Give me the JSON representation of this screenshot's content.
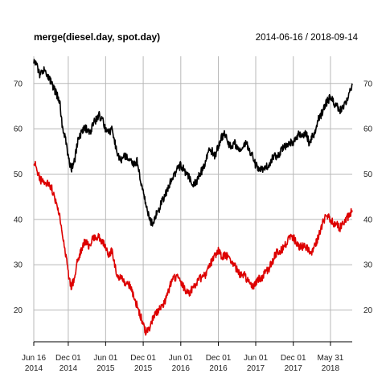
{
  "chart_data": {
    "type": "line",
    "title": "merge(diesel.day, spot.day)",
    "date_range": "2014-06-16 / 2018-09-14",
    "ylim": [
      13,
      76
    ],
    "y_ticks": [
      20,
      30,
      40,
      50,
      60,
      70
    ],
    "x_ticks": [
      {
        "date": "2014-06-16",
        "line1": "Jun 16",
        "line2": "2014"
      },
      {
        "date": "2014-12-01",
        "line1": "Dec 01",
        "line2": "2014"
      },
      {
        "date": "2015-06-01",
        "line1": "Jun 01",
        "line2": "2015"
      },
      {
        "date": "2015-12-01",
        "line1": "Dec 01",
        "line2": "2015"
      },
      {
        "date": "2016-06-01",
        "line1": "Jun 01",
        "line2": "2016"
      },
      {
        "date": "2016-12-01",
        "line1": "Dec 01",
        "line2": "2016"
      },
      {
        "date": "2017-06-01",
        "line1": "Jun 01",
        "line2": "2017"
      },
      {
        "date": "2017-12-01",
        "line1": "Dec 01",
        "line2": "2017"
      },
      {
        "date": "2018-05-31",
        "line1": "May 31",
        "line2": "2018"
      }
    ],
    "grid": true,
    "series": [
      {
        "color": "#000000",
        "x": [
          "2014-06-16",
          "2014-07-01",
          "2014-07-15",
          "2014-08-01",
          "2014-08-20",
          "2014-09-10",
          "2014-10-01",
          "2014-10-20",
          "2014-11-01",
          "2014-11-20",
          "2014-12-01",
          "2014-12-15",
          "2015-01-01",
          "2015-01-15",
          "2015-02-01",
          "2015-02-15",
          "2015-03-01",
          "2015-03-15",
          "2015-04-01",
          "2015-04-15",
          "2015-05-01",
          "2015-05-15",
          "2015-06-01",
          "2015-06-15",
          "2015-07-01",
          "2015-07-15",
          "2015-08-01",
          "2015-08-15",
          "2015-09-01",
          "2015-09-15",
          "2015-10-01",
          "2015-10-15",
          "2015-11-01",
          "2015-11-15",
          "2015-12-01",
          "2015-12-15",
          "2016-01-01",
          "2016-01-15",
          "2016-02-01",
          "2016-02-15",
          "2016-03-01",
          "2016-03-15",
          "2016-04-01",
          "2016-04-15",
          "2016-05-01",
          "2016-05-15",
          "2016-06-01",
          "2016-06-15",
          "2016-07-01",
          "2016-07-15",
          "2016-08-01",
          "2016-08-15",
          "2016-09-01",
          "2016-09-15",
          "2016-10-01",
          "2016-10-15",
          "2016-11-01",
          "2016-11-15",
          "2016-12-01",
          "2016-12-15",
          "2017-01-01",
          "2017-01-15",
          "2017-02-01",
          "2017-02-15",
          "2017-03-01",
          "2017-03-15",
          "2017-04-01",
          "2017-04-15",
          "2017-05-01",
          "2017-05-15",
          "2017-06-01",
          "2017-06-15",
          "2017-07-01",
          "2017-07-15",
          "2017-08-01",
          "2017-08-15",
          "2017-09-01",
          "2017-09-15",
          "2017-10-01",
          "2017-10-15",
          "2017-11-01",
          "2017-11-15",
          "2017-12-01",
          "2017-12-15",
          "2018-01-01",
          "2018-01-15",
          "2018-02-01",
          "2018-02-15",
          "2018-03-01",
          "2018-03-15",
          "2018-04-01",
          "2018-04-15",
          "2018-05-01",
          "2018-05-15",
          "2018-06-01",
          "2018-06-15",
          "2018-07-01",
          "2018-07-15",
          "2018-08-01",
          "2018-08-15",
          "2018-09-01",
          "2018-09-14"
        ],
        "values": [
          75,
          74,
          72,
          73,
          72,
          70,
          68,
          66,
          61,
          57,
          54,
          51,
          53,
          57,
          59,
          60,
          60,
          59,
          61,
          62,
          63,
          62,
          60,
          59,
          60,
          57,
          54,
          53,
          54,
          54,
          53,
          52,
          53,
          49,
          46,
          43,
          40,
          39,
          41,
          42,
          44,
          45,
          47,
          49,
          50,
          51,
          52,
          51,
          50,
          49,
          48,
          48,
          50,
          51,
          53,
          55,
          55,
          54,
          56,
          58,
          59,
          57,
          56,
          57,
          56,
          55,
          56,
          57,
          55,
          54,
          52,
          51,
          51,
          51,
          52,
          53,
          54,
          54,
          55,
          56,
          56,
          57,
          57,
          58,
          59,
          58,
          59,
          57,
          58,
          59,
          62,
          63,
          65,
          66,
          67,
          66,
          65,
          64,
          65,
          66,
          68,
          70
        ]
      },
      {
        "color": "#dd0000",
        "x": [
          "2014-06-16",
          "2014-07-01",
          "2014-07-15",
          "2014-08-01",
          "2014-08-20",
          "2014-09-10",
          "2014-10-01",
          "2014-10-20",
          "2014-11-01",
          "2014-11-20",
          "2014-12-01",
          "2014-12-15",
          "2015-01-01",
          "2015-01-15",
          "2015-02-01",
          "2015-02-15",
          "2015-03-01",
          "2015-03-15",
          "2015-04-01",
          "2015-04-15",
          "2015-05-01",
          "2015-05-15",
          "2015-06-01",
          "2015-06-15",
          "2015-07-01",
          "2015-07-15",
          "2015-08-01",
          "2015-08-15",
          "2015-09-01",
          "2015-09-15",
          "2015-10-01",
          "2015-10-15",
          "2015-11-01",
          "2015-11-15",
          "2015-12-01",
          "2015-12-15",
          "2016-01-01",
          "2016-01-15",
          "2016-02-01",
          "2016-02-15",
          "2016-03-01",
          "2016-03-15",
          "2016-04-01",
          "2016-04-15",
          "2016-05-01",
          "2016-05-15",
          "2016-06-01",
          "2016-06-15",
          "2016-07-01",
          "2016-07-15",
          "2016-08-01",
          "2016-08-15",
          "2016-09-01",
          "2016-09-15",
          "2016-10-01",
          "2016-10-15",
          "2016-11-01",
          "2016-11-15",
          "2016-12-01",
          "2016-12-15",
          "2017-01-01",
          "2017-01-15",
          "2017-02-01",
          "2017-02-15",
          "2017-03-01",
          "2017-03-15",
          "2017-04-01",
          "2017-04-15",
          "2017-05-01",
          "2017-05-15",
          "2017-06-01",
          "2017-06-15",
          "2017-07-01",
          "2017-07-15",
          "2017-08-01",
          "2017-08-15",
          "2017-09-01",
          "2017-09-15",
          "2017-10-01",
          "2017-10-15",
          "2017-11-01",
          "2017-11-15",
          "2017-12-01",
          "2017-12-15",
          "2018-01-01",
          "2018-01-15",
          "2018-02-01",
          "2018-02-15",
          "2018-03-01",
          "2018-03-15",
          "2018-04-01",
          "2018-04-15",
          "2018-05-01",
          "2018-05-15",
          "2018-06-01",
          "2018-06-15",
          "2018-07-01",
          "2018-07-15",
          "2018-08-01",
          "2018-08-15",
          "2018-09-01",
          "2018-09-14"
        ],
        "values": [
          53,
          51,
          49,
          48,
          48,
          47,
          44,
          41,
          37,
          32,
          28,
          25,
          27,
          31,
          33,
          35,
          35,
          34,
          36,
          36,
          36,
          35,
          34,
          32,
          33,
          30,
          27,
          27,
          26,
          26,
          25,
          23,
          21,
          19,
          17,
          15,
          16,
          18,
          19,
          20,
          21,
          22,
          24,
          26,
          27,
          27,
          26,
          25,
          24,
          24,
          25,
          26,
          27,
          27,
          28,
          29,
          31,
          32,
          33,
          32,
          32,
          32,
          31,
          30,
          29,
          28,
          28,
          27,
          26,
          25,
          26,
          27,
          27,
          28,
          29,
          30,
          32,
          33,
          33,
          34,
          35,
          36,
          36,
          35,
          34,
          34,
          34,
          33,
          33,
          34,
          36,
          38,
          40,
          41,
          40,
          39,
          39,
          38,
          39,
          40,
          41,
          42
        ]
      }
    ]
  }
}
